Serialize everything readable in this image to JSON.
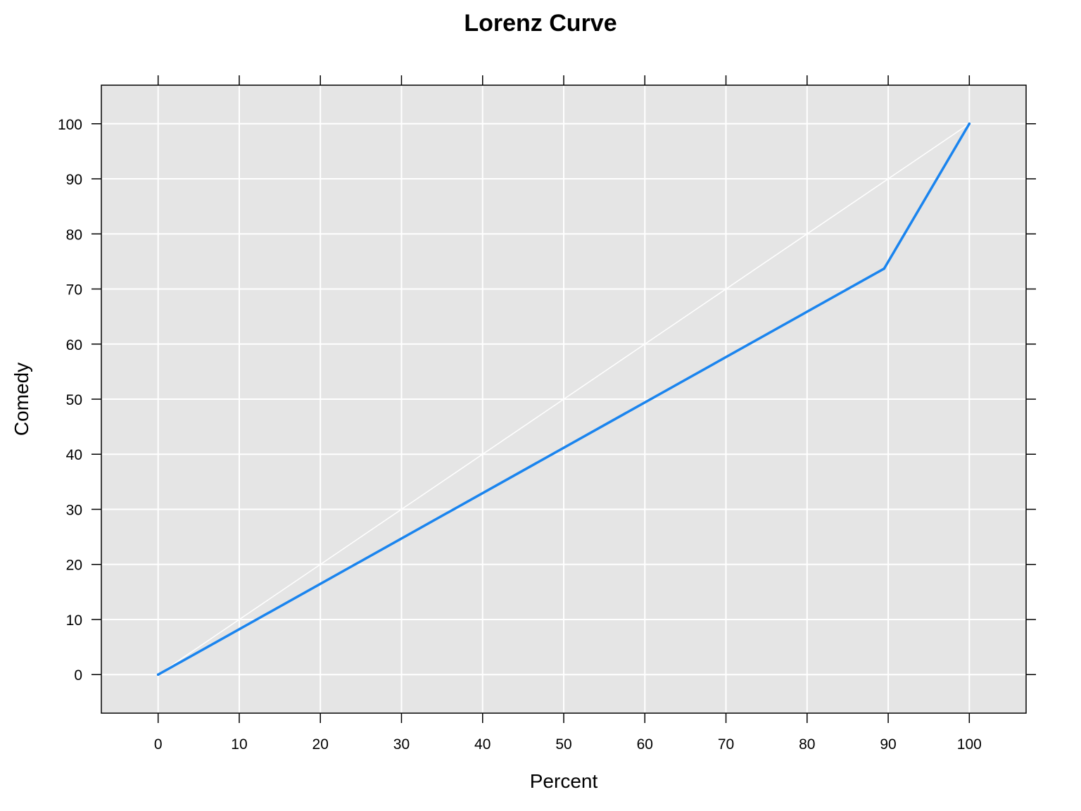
{
  "chart_data": {
    "type": "line",
    "title": "Lorenz Curve",
    "xlabel": "Percent",
    "ylabel": "Comedy",
    "xlim": [
      -7,
      107
    ],
    "ylim": [
      -7,
      107
    ],
    "x_ticks": [
      0,
      10,
      20,
      30,
      40,
      50,
      60,
      70,
      80,
      90,
      100
    ],
    "y_ticks": [
      0,
      10,
      20,
      30,
      40,
      50,
      60,
      70,
      80,
      90,
      100
    ],
    "grid": true,
    "legend": "none",
    "series": [
      {
        "color": "#1a84ee",
        "x": [
          0,
          89.5,
          100
        ],
        "y": [
          0,
          73.7,
          100
        ]
      }
    ],
    "reference_line": {
      "color": "#ffffff",
      "x": [
        0,
        100
      ],
      "y": [
        0,
        100
      ]
    },
    "colors": {
      "panel_background": "#e5e5e5",
      "grid": "#ffffff",
      "axis": "#000000"
    }
  }
}
